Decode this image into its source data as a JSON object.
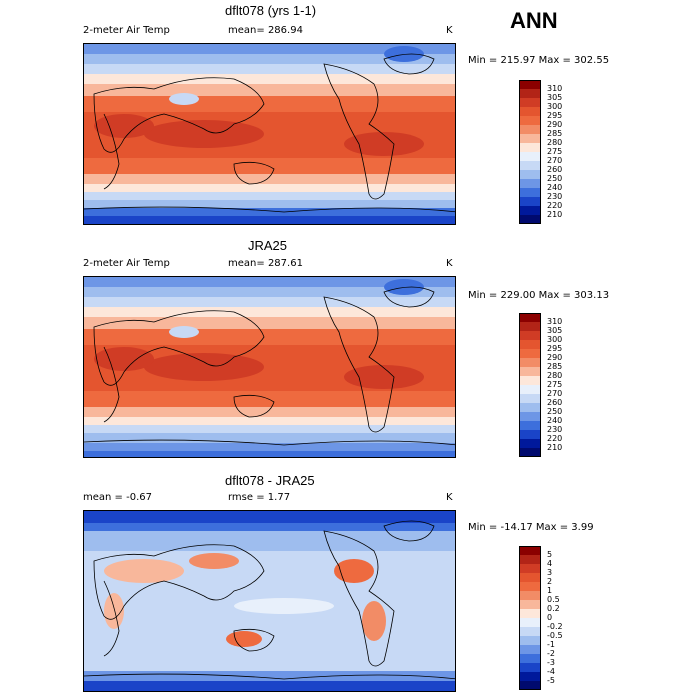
{
  "season": "ANN",
  "panels": [
    {
      "title": "dflt078 (yrs 1-1)",
      "left_label": "2-meter Air Temp",
      "mid_label": "mean=",
      "mid_value": "286.94",
      "unit": "K",
      "minmax": "Min = 215.97 Max = 302.55",
      "colorbar": {
        "labels": [
          "310",
          "305",
          "300",
          "295",
          "290",
          "285",
          "280",
          "275",
          "270",
          "260",
          "250",
          "240",
          "230",
          "220",
          "210"
        ],
        "colors": [
          "#8b0000",
          "#b22417",
          "#d03c25",
          "#e4552f",
          "#ee6a3f",
          "#f28c66",
          "#f8b79b",
          "#fde7da",
          "#e8f0fb",
          "#c7d9f5",
          "#9ebdee",
          "#6d96e6",
          "#3d6fdc",
          "#1a44c8",
          "#00199b",
          "#000a6e"
        ]
      }
    },
    {
      "title": "JRA25",
      "left_label": "2-meter Air Temp",
      "mid_label": "mean=",
      "mid_value": "287.61",
      "unit": "K",
      "minmax": "Min = 229.00 Max = 303.13",
      "colorbar": {
        "labels": [
          "310",
          "305",
          "300",
          "295",
          "290",
          "285",
          "280",
          "275",
          "270",
          "260",
          "250",
          "240",
          "230",
          "220",
          "210"
        ],
        "colors": [
          "#8b0000",
          "#b22417",
          "#d03c25",
          "#e4552f",
          "#ee6a3f",
          "#f28c66",
          "#f8b79b",
          "#fde7da",
          "#e8f0fb",
          "#c7d9f5",
          "#9ebdee",
          "#6d96e6",
          "#3d6fdc",
          "#1a44c8",
          "#00199b",
          "#000a6e"
        ]
      }
    },
    {
      "title": "dflt078 - JRA25",
      "left_label": "mean =",
      "left_value": "-0.67",
      "mid_label": "rmse =",
      "mid_value": "1.77",
      "unit": "K",
      "minmax": "Min = -14.17 Max =   3.99",
      "colorbar": {
        "labels": [
          "5",
          "4",
          "3",
          "2",
          "1",
          "0.5",
          "0.2",
          "0",
          "-0.2",
          "-0.5",
          "-1",
          "-2",
          "-3",
          "-4",
          "-5"
        ],
        "colors": [
          "#8b0000",
          "#b22417",
          "#d03c25",
          "#e4552f",
          "#ee6a3f",
          "#f28c66",
          "#f8b79b",
          "#fde7da",
          "#e8f0fb",
          "#c7d9f5",
          "#9ebdee",
          "#6d96e6",
          "#3d6fdc",
          "#1a44c8",
          "#00199b",
          "#000a6e"
        ]
      }
    }
  ]
}
